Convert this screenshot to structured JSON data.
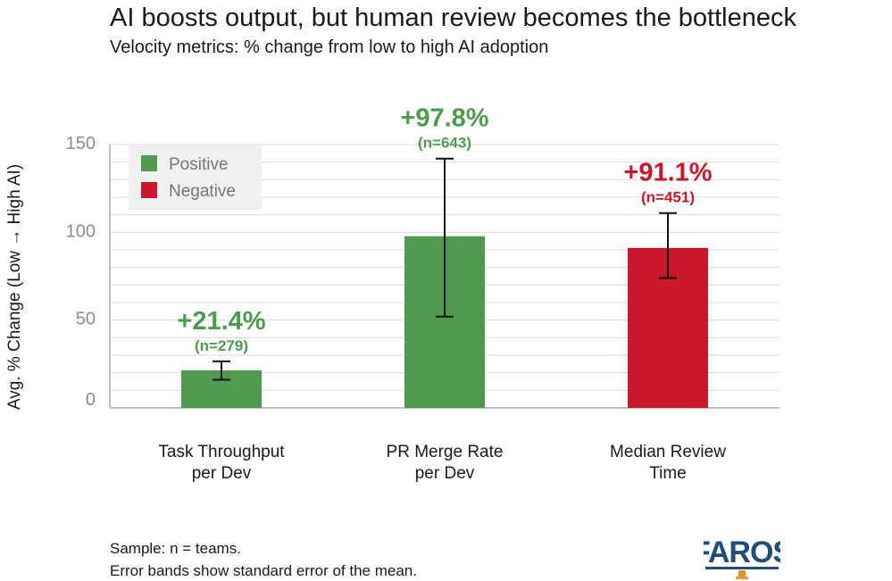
{
  "title": "AI boosts output, but human review becomes the bottleneck",
  "subtitle": "Velocity metrics: % change from low to high AI adoption",
  "footnotes": {
    "line1": "Sample: n = teams.",
    "line2": "Error bands show standard error of the mean."
  },
  "logo": {
    "text": "FAROS",
    "icon": "lighthouse-icon"
  },
  "colors": {
    "positive": "#4e9a4e",
    "negative": "#c8182a",
    "positive_label": "#4e9a4e",
    "negative_label": "#c8182a",
    "grid": "#d9d9d9",
    "axis": "#bfbfbf",
    "logo": "#1f4e79",
    "logo_accent": "#e8912d"
  },
  "chart_data": {
    "type": "bar",
    "ylabel": "Avg. % Change (Low → High AI)",
    "ylim": [
      0,
      150
    ],
    "yticks": [
      0,
      50,
      100,
      150
    ],
    "grid": true,
    "legend": {
      "placement": "top-left",
      "entries": [
        {
          "name": "Positive",
          "color": "#4e9a4e"
        },
        {
          "name": "Negative",
          "color": "#c8182a"
        }
      ]
    },
    "categories": [
      [
        "Task Throughput",
        "per Dev"
      ],
      [
        "PR Merge Rate",
        "per Dev"
      ],
      [
        "Median Review",
        "Time"
      ]
    ],
    "values": [
      21.4,
      97.8,
      91.1
    ],
    "error_low": [
      16,
      52,
      74
    ],
    "error_high": [
      26.5,
      142,
      111
    ],
    "sentiment": [
      "Positive",
      "Positive",
      "Negative"
    ],
    "value_labels": [
      "+21.4%",
      "+97.8%",
      "+91.1%"
    ],
    "n_labels": [
      "(n=279)",
      "(n=643)",
      "(n=451)"
    ]
  }
}
